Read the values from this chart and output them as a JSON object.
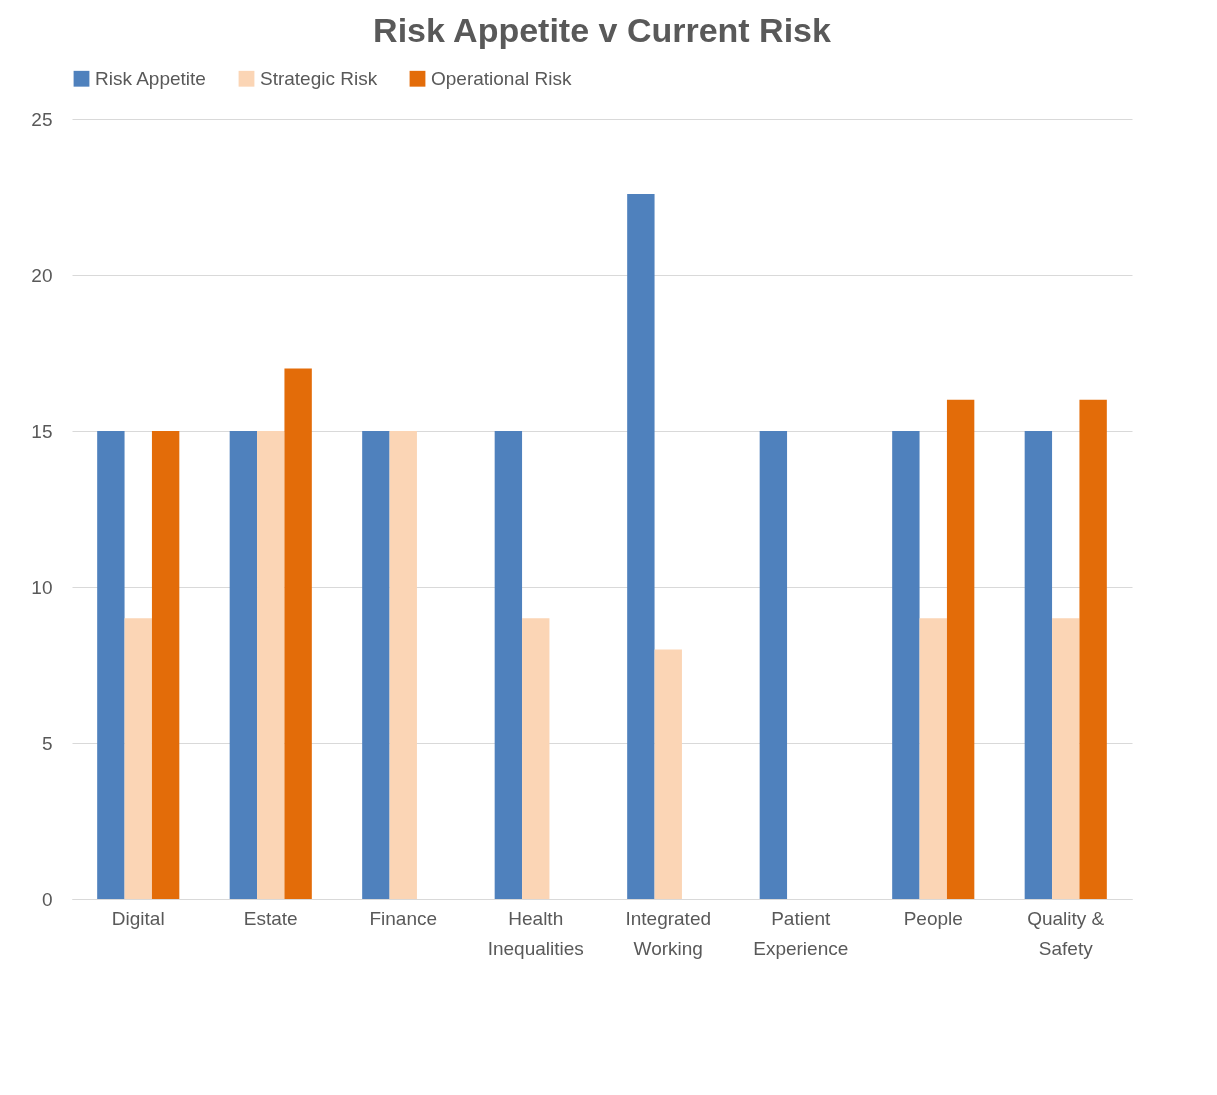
{
  "chart_data": {
    "type": "bar",
    "title": "Risk Appetite v Current Risk",
    "categories": [
      "Digital",
      "Estate",
      "Finance",
      "Health Inequalities",
      "Integrated Working",
      "Patient Experience",
      "People",
      "Quality & Safety"
    ],
    "series": [
      {
        "name": "Risk Appetite",
        "color": "#4f81bd",
        "values": [
          15,
          15,
          15,
          15,
          22.6,
          15,
          15,
          15
        ]
      },
      {
        "name": "Strategic Risk",
        "color": "#fbd5b5",
        "values": [
          9,
          15,
          15,
          9,
          8,
          null,
          9,
          9
        ]
      },
      {
        "name": "Operational Risk",
        "color": "#e36c09",
        "values": [
          15,
          17,
          null,
          null,
          null,
          null,
          16,
          16
        ]
      }
    ],
    "ylim": [
      0,
      25
    ],
    "yticks": [
      0,
      5,
      10,
      15,
      20,
      25
    ],
    "grid": "y",
    "legend": "top"
  }
}
